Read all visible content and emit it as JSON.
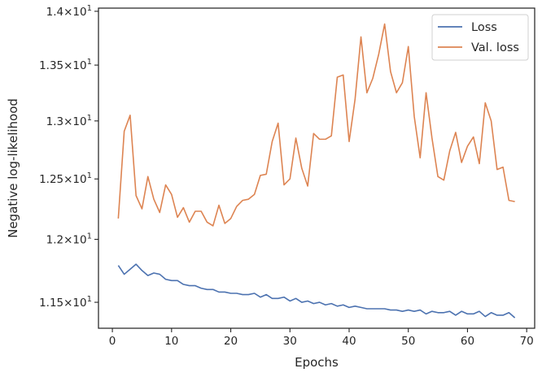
{
  "chart_data": {
    "type": "line",
    "xlabel": "Epochs",
    "ylabel": "Negative log-likelihood",
    "xlim": [
      -2.35,
      71.35
    ],
    "ylim": [
      11.3,
      14.03
    ],
    "y_scale": "log",
    "grid": false,
    "legend_position": "top-right",
    "x_ticks": [
      {
        "value": 0,
        "label": "0"
      },
      {
        "value": 10,
        "label": "10"
      },
      {
        "value": 20,
        "label": "20"
      },
      {
        "value": 30,
        "label": "30"
      },
      {
        "value": 40,
        "label": "40"
      },
      {
        "value": 50,
        "label": "50"
      },
      {
        "value": 60,
        "label": "60"
      },
      {
        "value": 70,
        "label": "70"
      }
    ],
    "y_ticks": [
      {
        "value": 11.5,
        "mantissa": "1.15",
        "base": "10",
        "exp": "1"
      },
      {
        "value": 12.0,
        "mantissa": "1.2",
        "base": "10",
        "exp": "1"
      },
      {
        "value": 12.5,
        "mantissa": "1.25",
        "base": "10",
        "exp": "1"
      },
      {
        "value": 13.0,
        "mantissa": "1.3",
        "base": "10",
        "exp": "1"
      },
      {
        "value": 13.5,
        "mantissa": "1.35",
        "base": "10",
        "exp": "1"
      },
      {
        "value": 14.0,
        "mantissa": "1.4",
        "base": "10",
        "exp": "1"
      }
    ],
    "x": [
      1,
      2,
      3,
      4,
      5,
      6,
      7,
      8,
      9,
      10,
      11,
      12,
      13,
      14,
      15,
      16,
      17,
      18,
      19,
      20,
      21,
      22,
      23,
      24,
      25,
      26,
      27,
      28,
      29,
      30,
      31,
      32,
      33,
      34,
      35,
      36,
      37,
      38,
      39,
      40,
      41,
      42,
      43,
      44,
      45,
      46,
      47,
      48,
      49,
      50,
      51,
      52,
      53,
      54,
      55,
      56,
      57,
      58,
      59,
      60,
      61,
      62,
      63,
      64,
      65,
      66,
      67,
      68
    ],
    "series": [
      {
        "name": "Loss",
        "color": "#4c72b0",
        "values": [
          11.79,
          11.72,
          11.76,
          11.8,
          11.75,
          11.71,
          11.73,
          11.72,
          11.68,
          11.67,
          11.67,
          11.64,
          11.63,
          11.63,
          11.61,
          11.6,
          11.6,
          11.58,
          11.58,
          11.57,
          11.57,
          11.56,
          11.56,
          11.57,
          11.54,
          11.56,
          11.53,
          11.53,
          11.54,
          11.51,
          11.53,
          11.5,
          11.51,
          11.49,
          11.5,
          11.48,
          11.49,
          11.47,
          11.48,
          11.46,
          11.47,
          11.46,
          11.45,
          11.45,
          11.45,
          11.45,
          11.44,
          11.44,
          11.43,
          11.44,
          11.43,
          11.44,
          11.41,
          11.43,
          11.42,
          11.42,
          11.43,
          11.4,
          11.43,
          11.41,
          11.41,
          11.43,
          11.39,
          11.42,
          11.4,
          11.4,
          11.42,
          11.38
        ]
      },
      {
        "name": "Val. loss",
        "color": "#dd8452",
        "values": [
          12.17,
          12.91,
          13.05,
          12.36,
          12.25,
          12.52,
          12.33,
          12.22,
          12.45,
          12.37,
          12.18,
          12.26,
          12.14,
          12.23,
          12.23,
          12.14,
          12.11,
          12.28,
          12.13,
          12.17,
          12.27,
          12.32,
          12.33,
          12.37,
          12.53,
          12.54,
          12.82,
          12.98,
          12.45,
          12.5,
          12.85,
          12.59,
          12.44,
          12.89,
          12.84,
          12.84,
          12.87,
          13.39,
          13.41,
          12.82,
          13.19,
          13.76,
          13.25,
          13.38,
          13.6,
          13.88,
          13.44,
          13.25,
          13.34,
          13.67,
          13.04,
          12.68,
          13.25,
          12.85,
          12.52,
          12.49,
          12.74,
          12.9,
          12.64,
          12.78,
          12.86,
          12.63,
          13.16,
          13.0,
          12.58,
          12.6,
          12.32,
          12.31
        ]
      }
    ]
  }
}
